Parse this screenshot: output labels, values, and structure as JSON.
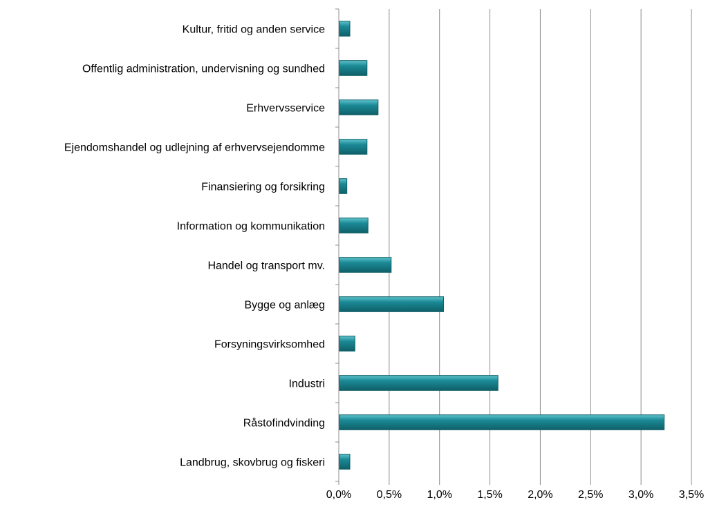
{
  "chart_data": {
    "type": "bar",
    "orientation": "horizontal",
    "categories": [
      "Kultur, fritid og anden service",
      "Offentlig administration, undervisning  og sundhed",
      "Erhvervsservice",
      "Ejendomshandel  og udlejning  af erhvervsejendomme",
      "Finansiering  og forsikring",
      "Information og kommunikation",
      "Handel og transport mv.",
      "Bygge og anlæg",
      "Forsyningsvirksomhed",
      "Industri",
      "Råstofindvinding",
      "Landbrug,  skovbrug  og fiskeri"
    ],
    "values": [
      0.11,
      0.28,
      0.39,
      0.28,
      0.08,
      0.29,
      0.52,
      1.04,
      0.16,
      1.58,
      3.23,
      0.11
    ],
    "value_unit": "%",
    "xlim": [
      0,
      3.5
    ],
    "xticks": [
      0,
      0.5,
      1.0,
      1.5,
      2.0,
      2.5,
      3.0,
      3.5
    ],
    "xtick_labels": [
      "0,0%",
      "0,5%",
      "1,0%",
      "1,5%",
      "2,0%",
      "2,5%",
      "3,0%",
      "3,5%"
    ],
    "title": "",
    "xlabel": "",
    "ylabel": "",
    "grid": "vertical",
    "legend": "none",
    "bar_color": "#1b8a96",
    "bar_color_dark": "#0f5f68",
    "gridline_color": "#8c8c8c"
  }
}
